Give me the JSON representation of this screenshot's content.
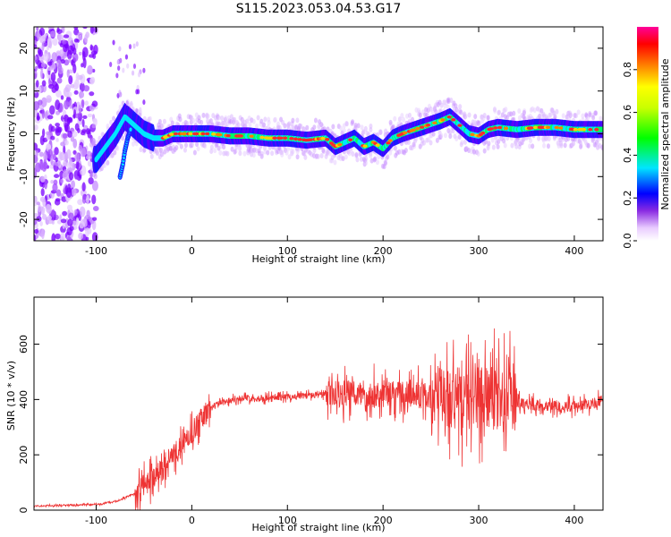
{
  "title": "S115.2023.053.04.53.G17",
  "chart_data": [
    {
      "type": "heatmap",
      "xlabel": "Height of straight line (km)",
      "ylabel": "Frequency (Hz)",
      "xlim": [
        -165,
        430
      ],
      "ylim": [
        -25,
        25
      ],
      "x_ticks": [
        -100,
        0,
        100,
        200,
        300,
        400
      ],
      "y_ticks": [
        -20,
        -10,
        0,
        10,
        20
      ],
      "colorbar": {
        "label": "Normalized spectral amplitude",
        "range": [
          0,
          1
        ],
        "ticks": [
          0.0,
          0.2,
          0.4,
          0.6,
          0.8
        ]
      },
      "ridge": {
        "x": [
          -100,
          -90,
          -80,
          -70,
          -60,
          -50,
          -40,
          -30,
          -20,
          -10,
          0,
          20,
          40,
          60,
          80,
          100,
          120,
          140,
          150,
          160,
          170,
          180,
          190,
          200,
          210,
          220,
          240,
          260,
          270,
          280,
          290,
          300,
          310,
          320,
          340,
          360,
          380,
          400,
          420,
          430
        ],
        "y": [
          -6,
          -3,
          0,
          4,
          2,
          0,
          -1,
          -1,
          0,
          0,
          0,
          0,
          -0.5,
          -0.5,
          -1,
          -1,
          -1.5,
          -1,
          -3,
          -2,
          -1,
          -3,
          -2,
          -3.5,
          -1,
          0,
          1.5,
          3,
          4,
          2,
          0,
          -0.5,
          1,
          1.5,
          1,
          1.5,
          1.5,
          1,
          1,
          1
        ]
      },
      "secondary_branch": {
        "x": [
          -75,
          -72,
          -70,
          -67,
          -64
        ],
        "y": [
          -10,
          -7,
          -4,
          -1,
          1
        ]
      }
    },
    {
      "type": "line",
      "xlabel": "Height of straight line (km)",
      "ylabel": "SNR (10 * v/v)",
      "xlim": [
        -165,
        430
      ],
      "ylim": [
        0,
        770
      ],
      "x_ticks": [
        -100,
        0,
        100,
        200,
        300,
        400
      ],
      "y_ticks": [
        0,
        200,
        400,
        600
      ],
      "color": "#ee3333",
      "envelope": {
        "x": [
          -165,
          -100,
          -80,
          -60,
          -50,
          -40,
          -30,
          -20,
          -10,
          0,
          10,
          20,
          30,
          50,
          80,
          100,
          150,
          200,
          250,
          280,
          300,
          320,
          340,
          360,
          400,
          430
        ],
        "y": [
          15,
          20,
          30,
          60,
          90,
          120,
          160,
          200,
          230,
          280,
          330,
          370,
          390,
          405,
          405,
          410,
          420,
          420,
          415,
          400,
          410,
          405,
          390,
          380,
          375,
          395
        ]
      }
    }
  ]
}
